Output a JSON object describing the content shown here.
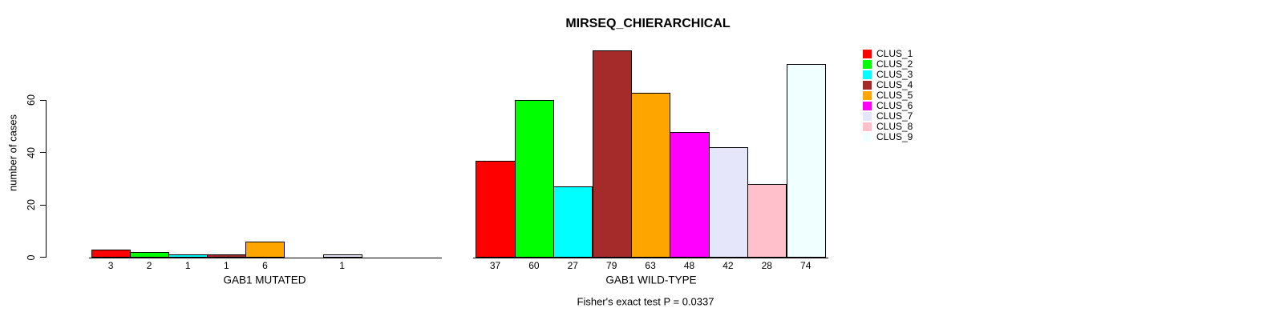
{
  "title": "MIRSEQ_CHIERARCHICAL",
  "y_axis": {
    "label": "number of cases",
    "ticks": [
      0,
      20,
      40,
      60
    ]
  },
  "footer": "Fisher's exact test P = 0.0337",
  "legend": {
    "items": [
      {
        "label": "CLUS_1",
        "color": "#FF0000"
      },
      {
        "label": "CLUS_2",
        "color": "#00FF00"
      },
      {
        "label": "CLUS_3",
        "color": "#00FFFF"
      },
      {
        "label": "CLUS_4",
        "color": "#A52A2A"
      },
      {
        "label": "CLUS_5",
        "color": "#FFA500"
      },
      {
        "label": "CLUS_6",
        "color": "#FF00FF"
      },
      {
        "label": "CLUS_7",
        "color": "#E6E6FA"
      },
      {
        "label": "CLUS_8",
        "color": "#FFC0CB"
      },
      {
        "label": "CLUS_9",
        "color": "#F0FFFF"
      }
    ]
  },
  "chart_data": {
    "type": "bar",
    "title": "MIRSEQ_CHIERARCHICAL",
    "ylabel": "number of cases",
    "ylim": [
      0,
      80
    ],
    "yticks": [
      0,
      20,
      40,
      60
    ],
    "grid": false,
    "legend_position": "right",
    "categories": [
      "CLUS_1",
      "CLUS_2",
      "CLUS_3",
      "CLUS_4",
      "CLUS_5",
      "CLUS_6",
      "CLUS_7",
      "CLUS_8",
      "CLUS_9"
    ],
    "colors": [
      "#FF0000",
      "#00FF00",
      "#00FFFF",
      "#A52A2A",
      "#FFA500",
      "#FF00FF",
      "#E6E6FA",
      "#FFC0CB",
      "#F0FFFF"
    ],
    "groups": [
      {
        "label": "GAB1 MUTATED",
        "values": [
          3,
          2,
          1,
          1,
          6,
          0,
          1,
          0,
          0
        ]
      },
      {
        "label": "GAB1 WILD-TYPE",
        "values": [
          37,
          60,
          27,
          79,
          63,
          48,
          42,
          28,
          74
        ]
      }
    ],
    "bar_value_labels_shown": true,
    "annotation": "Fisher's exact test P = 0.0337"
  }
}
